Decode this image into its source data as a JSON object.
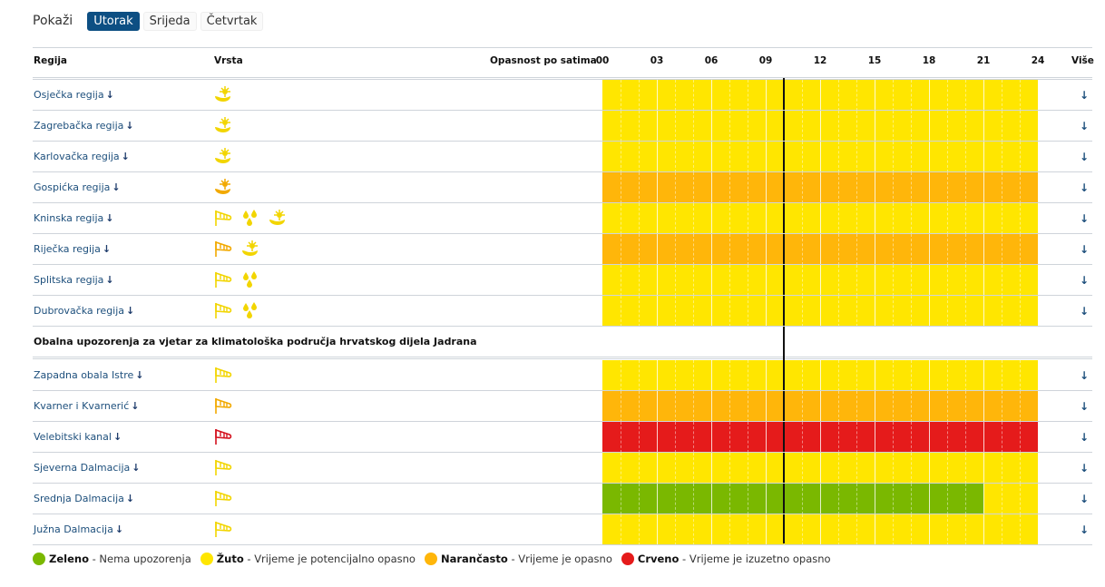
{
  "header": {
    "show_label": "Pokaži",
    "days": [
      {
        "label": "Utorak",
        "active": true
      },
      {
        "label": "Srijeda",
        "active": false
      },
      {
        "label": "Četvrtak",
        "active": false
      }
    ]
  },
  "columns": {
    "region": "Regija",
    "type": "Vrsta",
    "hazard": "Opasnost po satima",
    "more": "Više",
    "hours": [
      "00",
      "03",
      "06",
      "09",
      "12",
      "15",
      "18",
      "21",
      "24"
    ]
  },
  "current_hour": 10,
  "colors": {
    "green": "#7ab800",
    "yellow": "#ffe600",
    "orange": "#ffb60a",
    "red": "#e51b1b"
  },
  "more_icon": "arrow-down",
  "groups": [
    {
      "title": null,
      "rows": [
        {
          "name": "Osječka regija",
          "types": [
            {
              "icon": "heat",
              "level": "yellow"
            }
          ],
          "segments": [
            {
              "from": 0,
              "to": 24,
              "level": "yellow"
            }
          ]
        },
        {
          "name": "Zagrebačka regija",
          "types": [
            {
              "icon": "heat",
              "level": "yellow"
            }
          ],
          "segments": [
            {
              "from": 0,
              "to": 24,
              "level": "yellow"
            }
          ]
        },
        {
          "name": "Karlovačka regija",
          "types": [
            {
              "icon": "heat",
              "level": "yellow"
            }
          ],
          "segments": [
            {
              "from": 0,
              "to": 24,
              "level": "yellow"
            }
          ]
        },
        {
          "name": "Gospićka regija",
          "types": [
            {
              "icon": "heat",
              "level": "orange"
            }
          ],
          "segments": [
            {
              "from": 0,
              "to": 24,
              "level": "orange"
            }
          ]
        },
        {
          "name": "Kninska regija",
          "types": [
            {
              "icon": "wind",
              "level": "yellow"
            },
            {
              "icon": "rain",
              "level": "yellow"
            },
            {
              "icon": "heat",
              "level": "yellow"
            }
          ],
          "segments": [
            {
              "from": 0,
              "to": 24,
              "level": "yellow"
            }
          ]
        },
        {
          "name": "Riječka regija",
          "types": [
            {
              "icon": "wind",
              "level": "orange"
            },
            {
              "icon": "heat",
              "level": "yellow"
            }
          ],
          "segments": [
            {
              "from": 0,
              "to": 24,
              "level": "orange"
            }
          ]
        },
        {
          "name": "Splitska regija",
          "types": [
            {
              "icon": "wind",
              "level": "yellow"
            },
            {
              "icon": "rain",
              "level": "yellow"
            }
          ],
          "segments": [
            {
              "from": 0,
              "to": 24,
              "level": "yellow"
            }
          ]
        },
        {
          "name": "Dubrovačka regija",
          "types": [
            {
              "icon": "wind",
              "level": "yellow"
            },
            {
              "icon": "rain",
              "level": "yellow"
            }
          ],
          "segments": [
            {
              "from": 0,
              "to": 24,
              "level": "yellow"
            }
          ]
        }
      ]
    },
    {
      "title": "Obalna upozorenja za vjetar za klimatološka područja hrvatskog dijela Jadrana",
      "rows": [
        {
          "name": "Zapadna obala Istre",
          "types": [
            {
              "icon": "wind",
              "level": "yellow"
            }
          ],
          "segments": [
            {
              "from": 0,
              "to": 24,
              "level": "yellow"
            }
          ]
        },
        {
          "name": "Kvarner i Kvarnerić",
          "types": [
            {
              "icon": "wind",
              "level": "orange"
            }
          ],
          "segments": [
            {
              "from": 0,
              "to": 24,
              "level": "orange"
            }
          ]
        },
        {
          "name": "Velebitski kanal",
          "types": [
            {
              "icon": "wind",
              "level": "red"
            }
          ],
          "segments": [
            {
              "from": 0,
              "to": 24,
              "level": "red"
            }
          ]
        },
        {
          "name": "Sjeverna Dalmacija",
          "types": [
            {
              "icon": "wind",
              "level": "yellow"
            }
          ],
          "segments": [
            {
              "from": 0,
              "to": 24,
              "level": "yellow"
            }
          ]
        },
        {
          "name": "Srednja Dalmacija",
          "types": [
            {
              "icon": "wind",
              "level": "yellow"
            }
          ],
          "segments": [
            {
              "from": 0,
              "to": 21,
              "level": "green"
            },
            {
              "from": 21,
              "to": 24,
              "level": "yellow"
            }
          ]
        },
        {
          "name": "Južna Dalmacija",
          "types": [
            {
              "icon": "wind",
              "level": "yellow"
            }
          ],
          "segments": [
            {
              "from": 0,
              "to": 24,
              "level": "yellow"
            }
          ]
        }
      ]
    }
  ],
  "legend": [
    {
      "level": "green",
      "name": "Zeleno",
      "desc": " - Nema upozorenja"
    },
    {
      "level": "yellow",
      "name": "Žuto",
      "desc": " - Vrijeme je potencijalno opasno"
    },
    {
      "level": "orange",
      "name": "Narančasto",
      "desc": " - Vrijeme je opasno"
    },
    {
      "level": "red",
      "name": "Crveno",
      "desc": " - Vrijeme je izuzetno opasno"
    }
  ]
}
